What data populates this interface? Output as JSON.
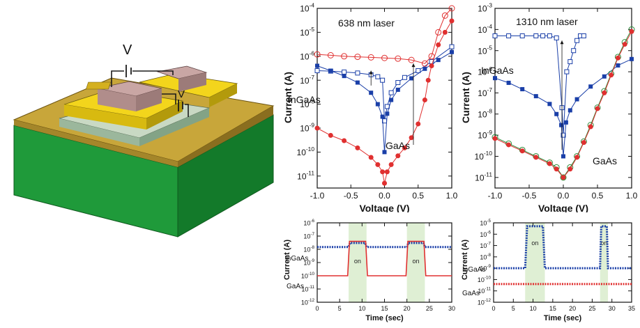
{
  "device": {
    "voltage_label_top": "V",
    "voltage_label_mid": "V"
  },
  "chart_data": [
    {
      "id": "iv638",
      "type": "line",
      "title": "638 nm laser",
      "xlabel": "Voltage (V)",
      "ylabel": "Current (A)",
      "xlim": [
        -1.0,
        1.0
      ],
      "ylim_log10": [
        -11.5,
        -4
      ],
      "log_y": true,
      "x_ticks": [
        "-1.0",
        "-0.5",
        "0.0",
        "0.5",
        "1.0"
      ],
      "y_ticks_exp": [
        "-11",
        "-10",
        "-9",
        "-8",
        "-7",
        "-6",
        "-5",
        "-4"
      ],
      "annotations": [
        "InGaAs",
        "GaAs"
      ],
      "series": [
        {
          "label": "InGaAs",
          "color": "#1a3fa8",
          "marker": "open-square",
          "x": [
            -1.0,
            -0.8,
            -0.6,
            -0.4,
            -0.2,
            -0.1,
            -0.03,
            0.0,
            0.04,
            0.1,
            0.2,
            0.3,
            0.5,
            0.7,
            1.0
          ],
          "y": [
            2.5e-07,
            2.4e-07,
            2.2e-07,
            2e-07,
            1.7e-07,
            1.4e-07,
            1e-07,
            2e-09,
            8e-09,
            3e-08,
            8e-08,
            1.3e-07,
            2.5e-07,
            6e-07,
            2.5e-06
          ]
        },
        {
          "label": "InGaAs",
          "color": "#1a3fa8",
          "marker": "filled-square",
          "x": [
            -1.0,
            -0.8,
            -0.6,
            -0.4,
            -0.2,
            -0.1,
            -0.03,
            0.0,
            0.04,
            0.1,
            0.2,
            0.4,
            0.6,
            0.8,
            1.0
          ],
          "y": [
            4e-07,
            2.5e-07,
            1.5e-07,
            8e-08,
            3e-08,
            1e-08,
            3e-09,
            1e-10,
            4e-09,
            1.5e-08,
            4e-08,
            1.2e-07,
            3e-07,
            7e-07,
            1.5e-06
          ]
        },
        {
          "label": "GaAs",
          "color": "#e03030",
          "marker": "open-circle",
          "x": [
            -1.0,
            -0.8,
            -0.6,
            -0.4,
            -0.2,
            0.0,
            0.2,
            0.4,
            0.6,
            0.7,
            0.8,
            0.9,
            1.0
          ],
          "y": [
            1.2e-06,
            1.1e-06,
            1e-06,
            9.5e-07,
            9e-07,
            8.5e-07,
            8e-07,
            7e-07,
            5e-07,
            1e-06,
            1e-05,
            5e-05,
            0.0001
          ]
        },
        {
          "label": "GaAs",
          "color": "#e03030",
          "marker": "filled-circle",
          "x": [
            -1.0,
            -0.8,
            -0.6,
            -0.4,
            -0.2,
            -0.1,
            -0.03,
            0.0,
            0.04,
            0.1,
            0.2,
            0.3,
            0.4,
            0.5,
            0.6,
            0.65,
            0.7,
            0.8,
            0.9,
            1.0
          ],
          "y": [
            1e-09,
            5e-10,
            3e-10,
            1.5e-10,
            6e-11,
            3e-11,
            1.5e-11,
            5e-12,
            1.5e-11,
            3e-11,
            7e-11,
            1.5e-10,
            4e-10,
            1.5e-09,
            1.5e-08,
            1e-07,
            4e-07,
            3e-06,
            1e-05,
            3e-05
          ]
        }
      ]
    },
    {
      "id": "iv1310",
      "type": "line",
      "title": "1310 nm laser",
      "xlabel": "Voltage (V)",
      "ylabel": "Current (A)",
      "xlim": [
        -1.0,
        1.0
      ],
      "ylim_log10": [
        -11.5,
        -3
      ],
      "log_y": true,
      "x_ticks": [
        "-1.0",
        "-0.5",
        "0.0",
        "0.5",
        "1.0"
      ],
      "y_ticks_exp": [
        "-11",
        "-10",
        "-9",
        "-8",
        "-7",
        "-6",
        "-5",
        "-4",
        "-3"
      ],
      "annotations": [
        "InGaAs",
        "GaAs"
      ],
      "series": [
        {
          "label": "InGaAs",
          "color": "#1a3fa8",
          "marker": "open-square",
          "x": [
            -1.0,
            -0.8,
            -0.6,
            -0.4,
            -0.3,
            -0.2,
            -0.1,
            -0.02,
            0.0,
            0.05,
            0.1,
            0.15,
            0.2,
            0.25,
            0.3
          ],
          "y": [
            5e-05,
            5e-05,
            5e-05,
            5e-05,
            5e-05,
            5e-05,
            4e-05,
            2e-08,
            1e-09,
            1e-06,
            3e-06,
            1e-05,
            3e-05,
            5e-05,
            5e-05
          ]
        },
        {
          "label": "InGaAs",
          "color": "#1a3fa8",
          "marker": "filled-square",
          "x": [
            -1.0,
            -0.8,
            -0.6,
            -0.4,
            -0.2,
            -0.1,
            -0.03,
            0.0,
            0.04,
            0.1,
            0.2,
            0.4,
            0.6,
            0.8,
            1.0
          ],
          "y": [
            5e-07,
            3e-07,
            1.5e-07,
            7e-08,
            3e-08,
            1e-08,
            3e-09,
            1e-10,
            4e-09,
            1.5e-08,
            5e-08,
            2e-07,
            6e-07,
            2e-06,
            4e-06
          ]
        },
        {
          "label": "GaAs",
          "color": "#2e8b3a",
          "marker": "open-circle",
          "x": [
            -1.0,
            -0.8,
            -0.6,
            -0.4,
            -0.2,
            -0.1,
            0.0,
            0.1,
            0.2,
            0.3,
            0.4,
            0.5,
            0.6,
            0.7,
            0.8,
            0.9,
            1.0
          ],
          "y": [
            8e-10,
            4e-10,
            2e-10,
            1e-10,
            5e-11,
            3e-11,
            1e-11,
            3e-11,
            1e-10,
            5e-10,
            3e-09,
            2e-08,
            1.2e-07,
            8e-07,
            5e-06,
            2.5e-05,
            0.0001
          ]
        },
        {
          "label": "GaAs",
          "color": "#e03030",
          "marker": "filled-circle",
          "x": [
            -1.0,
            -0.8,
            -0.6,
            -0.4,
            -0.2,
            -0.1,
            0.0,
            0.1,
            0.2,
            0.3,
            0.4,
            0.5,
            0.6,
            0.7,
            0.8,
            0.9,
            1.0
          ],
          "y": [
            7e-10,
            3.5e-10,
            1.8e-10,
            9e-11,
            4.5e-11,
            2.5e-11,
            1e-11,
            2.5e-11,
            9e-11,
            4.5e-10,
            2.5e-09,
            1.8e-08,
            1e-07,
            7e-07,
            4.5e-06,
            2e-05,
            8e-05
          ]
        }
      ]
    },
    {
      "id": "t638",
      "type": "line",
      "xlabel": "Time (sec)",
      "ylabel": "Current (A)",
      "xlim": [
        0,
        30
      ],
      "ylim_log10": [
        -12,
        -6
      ],
      "log_y": true,
      "x_ticks": [
        "0",
        "5",
        "10",
        "15",
        "20",
        "25",
        "30"
      ],
      "y_ticks_exp": [
        "-12",
        "-11",
        "-10",
        "-9",
        "-8",
        "-7",
        "-6"
      ],
      "on_windows": [
        [
          7,
          11
        ],
        [
          20,
          24
        ]
      ],
      "on_label": "on",
      "annotations": [
        "InGaAs",
        "GaAs"
      ],
      "series": [
        {
          "label": "InGaAs",
          "color": "#1a3fa8",
          "style": "dots",
          "x": [
            0,
            7,
            7.3,
            10.7,
            11,
            20,
            20.3,
            23.7,
            24,
            30
          ],
          "y": [
            1.5e-08,
            1.5e-08,
            3e-08,
            3e-08,
            1.5e-08,
            1.5e-08,
            3e-08,
            3e-08,
            1.5e-08,
            1.5e-08
          ]
        },
        {
          "label": "GaAs",
          "color": "#e03030",
          "style": "line",
          "x": [
            0,
            6.8,
            7.2,
            10.8,
            11.2,
            19.8,
            20.2,
            23.8,
            24.2,
            30
          ],
          "y": [
            1e-10,
            1e-10,
            4e-08,
            4e-08,
            1e-10,
            1e-10,
            4e-08,
            4e-08,
            1e-10,
            1e-10
          ]
        }
      ]
    },
    {
      "id": "t1310",
      "type": "line",
      "xlabel": "Time (sec)",
      "ylabel": "Current (A)",
      "xlim": [
        0,
        35
      ],
      "ylim_log10": [
        -12,
        -5
      ],
      "log_y": true,
      "x_ticks": [
        "0",
        "5",
        "10",
        "15",
        "20",
        "25",
        "30",
        "35"
      ],
      "y_ticks_exp": [
        "-12",
        "-11",
        "-10",
        "-9",
        "-8",
        "-7",
        "-6",
        "-5"
      ],
      "on_windows": [
        [
          8,
          13
        ],
        [
          27,
          29
        ]
      ],
      "on_label": "on",
      "annotations": [
        "InGaAs",
        "GaAs"
      ],
      "series": [
        {
          "label": "InGaAs",
          "color": "#1a3fa8",
          "style": "dots",
          "x": [
            0,
            8,
            8.5,
            12.5,
            13,
            27,
            27.3,
            28.7,
            29,
            35
          ],
          "y": [
            1e-09,
            1e-09,
            5e-06,
            5e-06,
            1e-09,
            1e-09,
            5e-06,
            5e-06,
            1e-09,
            1e-09
          ]
        },
        {
          "label": "GaAs",
          "color": "#e03030",
          "style": "dots",
          "x": [
            0,
            35
          ],
          "y": [
            4e-11,
            4e-11
          ]
        }
      ]
    }
  ]
}
